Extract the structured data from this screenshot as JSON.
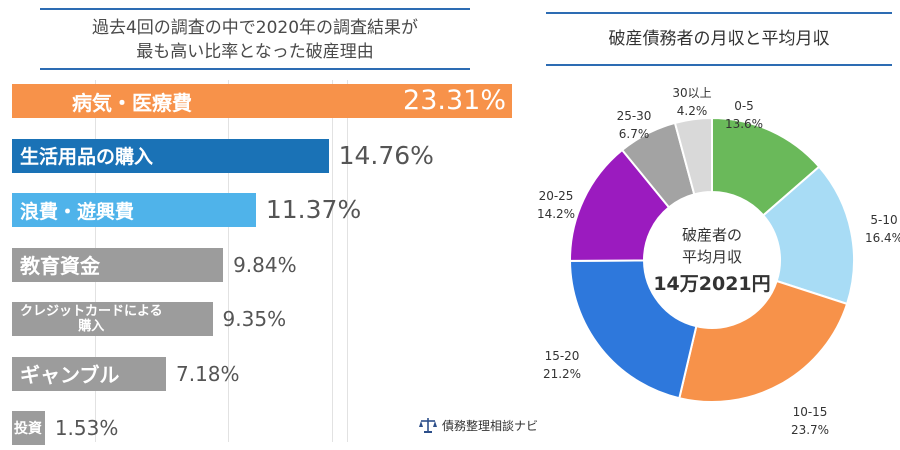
{
  "left_chart": {
    "title_line1": "過去4回の調査の中で2020年の調査結果が",
    "title_line2": "最も高い比率となった破産理由"
  },
  "right_chart": {
    "title": "破産債務者の月収と平均月収",
    "center_label_line1": "破産者の",
    "center_label_line2": "平均月収",
    "center_value": "14万2021円"
  },
  "watermark": {
    "text": "債務整理相談ナビ",
    "icon": "scales-icon"
  },
  "chart_data": [
    {
      "type": "bar",
      "orientation": "horizontal",
      "title": "過去4回の調査の中で2020年の調査結果が最も高い比率となった破産理由",
      "categories": [
        "病気・医療費",
        "生活用品の購入",
        "浪費・遊興費",
        "教育資金",
        "クレジットカードによる購入",
        "ギャンブル",
        "投資"
      ],
      "category_display": [
        [
          "病気・医療費"
        ],
        [
          "生活用品の購入"
        ],
        [
          "浪費・遊興費"
        ],
        [
          "教育資金"
        ],
        [
          "クレジットカードによる",
          "購入"
        ],
        [
          "ギャンブル"
        ],
        [
          "投資"
        ]
      ],
      "values": [
        23.31,
        14.76,
        11.37,
        9.84,
        9.35,
        7.18,
        1.53
      ],
      "value_labels": [
        "23.31%",
        "14.76%",
        "11.37%",
        "9.84%",
        "9.35%",
        "7.18%",
        "1.53%"
      ],
      "colors": [
        "#f7924a",
        "#1a72b6",
        "#4fb3ea",
        "#9c9c9c",
        "#9c9c9c",
        "#9c9c9c",
        "#9c9c9c"
      ],
      "xlim": [
        0,
        23.31
      ],
      "grid": true
    },
    {
      "type": "pie",
      "donut": true,
      "title": "破産債務者の月収と平均月収",
      "categories": [
        "0-5",
        "5-10",
        "10-15",
        "15-20",
        "20-25",
        "25-30",
        "30以上"
      ],
      "values": [
        13.6,
        16.4,
        23.7,
        21.2,
        14.2,
        6.7,
        4.2
      ],
      "value_labels": [
        "13.6%",
        "16.4%",
        "23.7%",
        "21.2%",
        "14.2%",
        "6.7%",
        "4.2%"
      ],
      "colors": [
        "#6ab95a",
        "#a8dcf5",
        "#f7924a",
        "#2e78dc",
        "#9b1bbf",
        "#a3a3a3",
        "#d9d9d9"
      ]
    }
  ]
}
